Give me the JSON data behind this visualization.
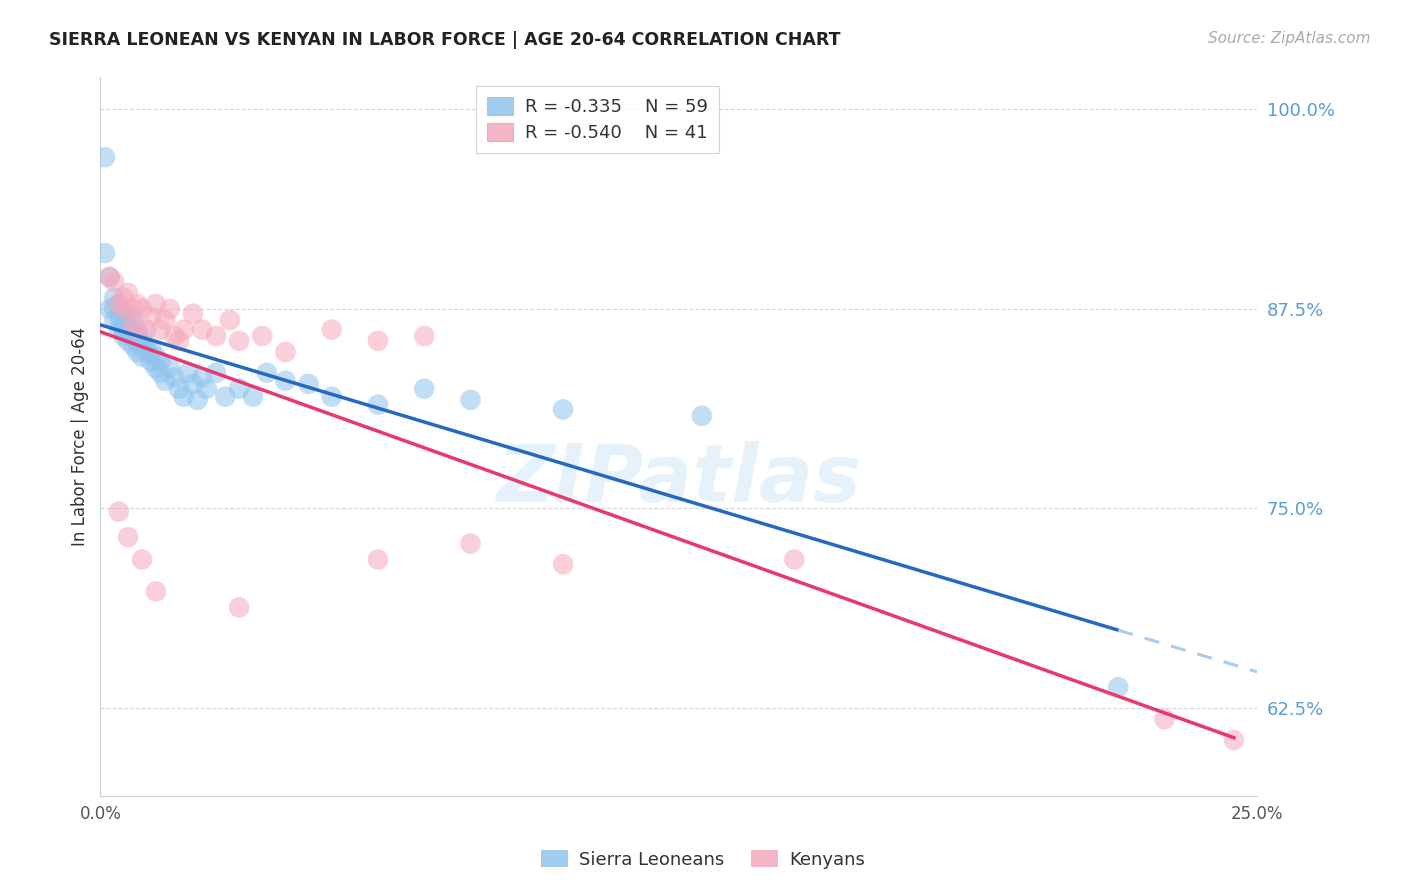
{
  "title": "SIERRA LEONEAN VS KENYAN IN LABOR FORCE | AGE 20-64 CORRELATION CHART",
  "source": "Source: ZipAtlas.com",
  "ylabel": "In Labor Force | Age 20-64",
  "xlim": [
    0.0,
    0.25
  ],
  "ylim": [
    0.57,
    1.02
  ],
  "yticks": [
    0.625,
    0.75,
    0.875,
    1.0
  ],
  "ytick_labels": [
    "62.5%",
    "75.0%",
    "87.5%",
    "100.0%"
  ],
  "xticks": [
    0.0,
    0.05,
    0.1,
    0.15,
    0.2,
    0.25
  ],
  "xtick_labels": [
    "0.0%",
    "",
    "",
    "",
    "",
    "25.0%"
  ],
  "blue_color": "#8EC4ED",
  "pink_color": "#F5A8BC",
  "blue_line_color": "#2468C0",
  "pink_line_color": "#E83870",
  "dashed_line_color": "#A8CCEE",
  "watermark": "ZIPatlas",
  "legend_blue_r": "-0.335",
  "legend_blue_n": "59",
  "legend_pink_r": "-0.540",
  "legend_pink_n": "41",
  "blue_x": [
    0.001,
    0.001,
    0.002,
    0.002,
    0.003,
    0.003,
    0.003,
    0.004,
    0.004,
    0.004,
    0.005,
    0.005,
    0.005,
    0.005,
    0.006,
    0.006,
    0.006,
    0.007,
    0.007,
    0.007,
    0.007,
    0.008,
    0.008,
    0.008,
    0.009,
    0.009,
    0.009,
    0.01,
    0.01,
    0.011,
    0.011,
    0.012,
    0.012,
    0.013,
    0.013,
    0.014,
    0.015,
    0.016,
    0.017,
    0.018,
    0.019,
    0.02,
    0.021,
    0.022,
    0.023,
    0.025,
    0.027,
    0.03,
    0.033,
    0.036,
    0.04,
    0.045,
    0.05,
    0.06,
    0.07,
    0.08,
    0.1,
    0.13,
    0.22
  ],
  "blue_y": [
    0.97,
    0.91,
    0.895,
    0.875,
    0.882,
    0.868,
    0.875,
    0.87,
    0.862,
    0.878,
    0.868,
    0.862,
    0.872,
    0.858,
    0.865,
    0.86,
    0.855,
    0.862,
    0.858,
    0.868,
    0.852,
    0.86,
    0.855,
    0.848,
    0.858,
    0.852,
    0.845,
    0.848,
    0.852,
    0.842,
    0.85,
    0.845,
    0.838,
    0.842,
    0.835,
    0.83,
    0.838,
    0.832,
    0.825,
    0.82,
    0.835,
    0.828,
    0.818,
    0.832,
    0.825,
    0.835,
    0.82,
    0.825,
    0.82,
    0.835,
    0.83,
    0.828,
    0.82,
    0.815,
    0.825,
    0.818,
    0.812,
    0.808,
    0.638
  ],
  "pink_x": [
    0.002,
    0.003,
    0.004,
    0.005,
    0.005,
    0.006,
    0.007,
    0.007,
    0.008,
    0.008,
    0.009,
    0.01,
    0.011,
    0.012,
    0.013,
    0.014,
    0.015,
    0.016,
    0.017,
    0.018,
    0.02,
    0.022,
    0.025,
    0.028,
    0.03,
    0.035,
    0.04,
    0.05,
    0.06,
    0.07,
    0.004,
    0.006,
    0.009,
    0.012,
    0.03,
    0.06,
    0.08,
    0.1,
    0.15,
    0.23,
    0.245
  ],
  "pink_y": [
    0.895,
    0.892,
    0.878,
    0.882,
    0.875,
    0.885,
    0.875,
    0.865,
    0.878,
    0.862,
    0.875,
    0.862,
    0.87,
    0.878,
    0.862,
    0.868,
    0.875,
    0.858,
    0.855,
    0.862,
    0.872,
    0.862,
    0.858,
    0.868,
    0.855,
    0.858,
    0.848,
    0.862,
    0.855,
    0.858,
    0.748,
    0.732,
    0.718,
    0.698,
    0.688,
    0.718,
    0.728,
    0.715,
    0.718,
    0.618,
    0.605
  ],
  "blue_solid_xrange": [
    0.0,
    0.22
  ],
  "blue_dashed_xrange": [
    0.22,
    0.25
  ],
  "pink_solid_xrange": [
    0.0,
    0.245
  ]
}
